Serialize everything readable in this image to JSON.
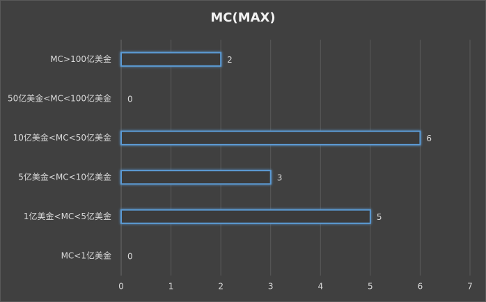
{
  "chart_data": {
    "type": "barh",
    "title": "MC(MAX)",
    "categories": [
      "MC>100亿美金",
      "50亿美金<MC<100亿美金",
      "10亿美金<MC<50亿美金",
      "5亿美金<MC<10亿美金",
      "1亿美金<MC<5亿美金",
      "MC<1亿美金"
    ],
    "values": [
      2,
      0,
      6,
      3,
      5,
      0
    ],
    "color": "#5b9bd5",
    "xlim": [
      0,
      7
    ],
    "xticks": [
      0,
      1,
      2,
      3,
      4,
      5,
      6,
      7
    ],
    "grid": true
  }
}
